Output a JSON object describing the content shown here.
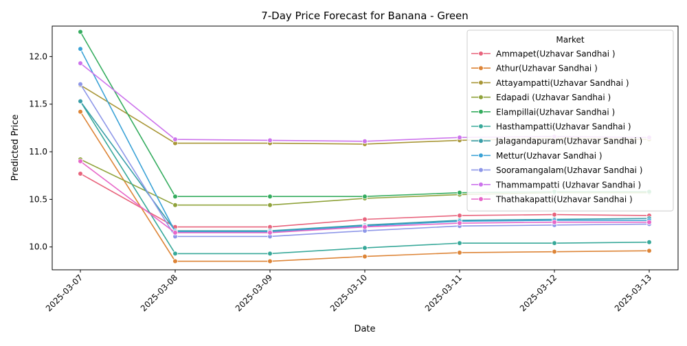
{
  "chart_data": {
    "type": "line",
    "title": "7-Day Price Forecast for Banana - Green",
    "xlabel": "Date",
    "ylabel": "Predicted Price",
    "categories": [
      "2025-03-07",
      "2025-03-08",
      "2025-03-09",
      "2025-03-10",
      "2025-03-11",
      "2025-03-12",
      "2025-03-13"
    ],
    "ylim": [
      9.76,
      12.32
    ],
    "yticks": [
      "10.0",
      "10.5",
      "11.0",
      "11.5",
      "12.0"
    ],
    "grid": false,
    "legend": {
      "title": "Market",
      "position": "top-right"
    },
    "series": [
      {
        "name": "Ammapet(Uzhavar Sandhai )",
        "color": "#e8637c",
        "values": [
          10.77,
          10.21,
          10.21,
          10.29,
          10.33,
          10.34,
          10.33
        ]
      },
      {
        "name": "Athur(Uzhavar Sandhai )",
        "color": "#dd8436",
        "values": [
          11.42,
          9.85,
          9.85,
          9.9,
          9.94,
          9.95,
          9.96
        ]
      },
      {
        "name": "Attayampatti(Uzhavar Sandhai )",
        "color": "#a89636",
        "values": [
          11.7,
          11.09,
          11.09,
          11.08,
          11.12,
          11.14,
          11.13
        ]
      },
      {
        "name": "Edapadi (Uzhavar Sandhai )",
        "color": "#8fa23a",
        "values": [
          10.92,
          10.44,
          10.44,
          10.51,
          10.55,
          10.57,
          10.57
        ]
      },
      {
        "name": "Elampillai(Uzhavar Sandhai )",
        "color": "#34ac5e",
        "values": [
          12.26,
          10.53,
          10.53,
          10.53,
          10.57,
          10.58,
          10.58
        ]
      },
      {
        "name": "Hasthampatti(Uzhavar Sandhai )",
        "color": "#37a899",
        "values": [
          11.53,
          9.93,
          9.93,
          9.99,
          10.04,
          10.04,
          10.05
        ]
      },
      {
        "name": "Jalagandapuram(Uzhavar Sandhai )",
        "color": "#389ea8",
        "values": [
          11.53,
          10.17,
          10.17,
          10.23,
          10.28,
          10.29,
          10.3
        ]
      },
      {
        "name": "Mettur(Uzhavar Sandhai )",
        "color": "#3aa2d6",
        "values": [
          12.08,
          10.16,
          10.16,
          10.22,
          10.27,
          10.28,
          10.28
        ]
      },
      {
        "name": "Sooramangalam(Uzhavar Sandhai )",
        "color": "#8d96e8",
        "values": [
          11.71,
          10.11,
          10.11,
          10.17,
          10.22,
          10.23,
          10.24
        ]
      },
      {
        "name": "Thammampatti (Uzhavar Sandhai )",
        "color": "#cc72ec",
        "values": [
          11.93,
          11.13,
          11.12,
          11.11,
          11.15,
          11.16,
          11.15
        ]
      },
      {
        "name": "Thathakapatti(Uzhavar Sandhai )",
        "color": "#e766c8",
        "values": [
          10.9,
          10.15,
          10.15,
          10.21,
          10.25,
          10.26,
          10.26
        ]
      }
    ]
  }
}
